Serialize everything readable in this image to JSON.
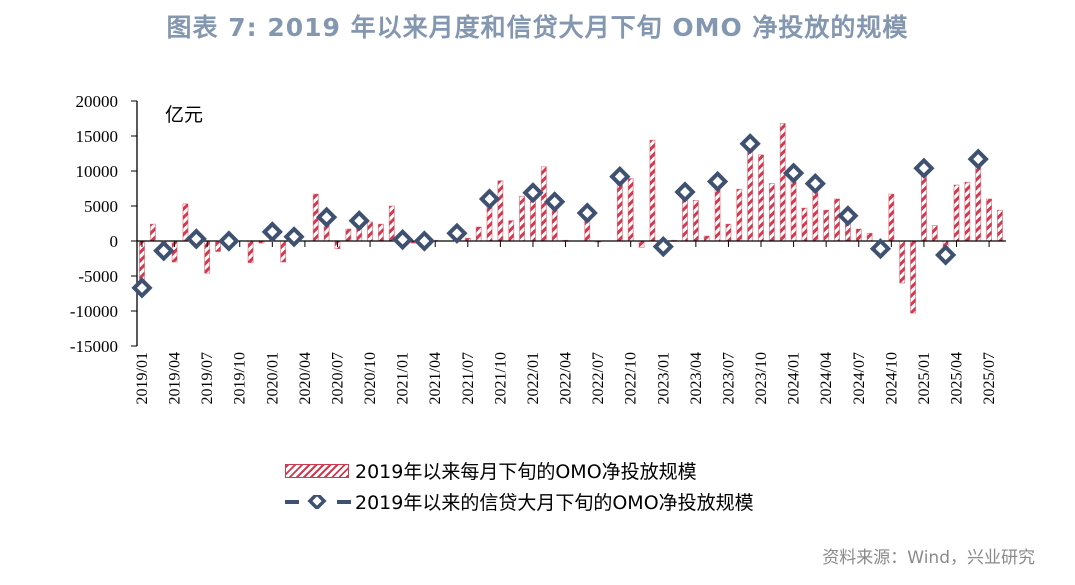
{
  "title": "图表 7:  2019 年以来月度和信贷大月下旬 OMO 净投放的规模",
  "source": "资料来源：Wind，兴业研究",
  "colors": {
    "bar": "#d0394f",
    "diamond": "#3f5170",
    "title": "#8497b0"
  },
  "chart_data": {
    "type": "bar",
    "unit_label": "亿元",
    "ylim": [
      -15000,
      20000
    ],
    "yticks": [
      20000,
      15000,
      10000,
      5000,
      0,
      -5000,
      -10000,
      -15000
    ],
    "grid": false,
    "legend_placement": "bottom",
    "x": [
      "2019/01",
      "2019/02",
      "2019/03",
      "2019/04",
      "2019/05",
      "2019/06",
      "2019/07",
      "2019/08",
      "2019/09",
      "2019/10",
      "2019/11",
      "2019/12",
      "2020/01",
      "2020/02",
      "2020/03",
      "2020/04",
      "2020/05",
      "2020/06",
      "2020/07",
      "2020/08",
      "2020/09",
      "2020/10",
      "2020/11",
      "2020/12",
      "2021/01",
      "2021/02",
      "2021/03",
      "2021/04",
      "2021/05",
      "2021/06",
      "2021/07",
      "2021/08",
      "2021/09",
      "2021/10",
      "2021/11",
      "2021/12",
      "2022/01",
      "2022/02",
      "2022/03",
      "2022/04",
      "2022/05",
      "2022/06",
      "2022/07",
      "2022/08",
      "2022/09",
      "2022/10",
      "2022/11",
      "2022/12",
      "2023/01",
      "2023/02",
      "2023/03",
      "2023/04",
      "2023/05",
      "2023/06",
      "2023/07",
      "2023/08",
      "2023/09",
      "2023/10",
      "2023/11",
      "2023/12",
      "2024/01",
      "2024/02",
      "2024/03",
      "2024/04",
      "2024/05",
      "2024/06",
      "2024/07",
      "2024/08",
      "2024/09",
      "2024/10",
      "2024/11",
      "2024/12",
      "2025/01",
      "2025/02",
      "2025/03",
      "2025/04",
      "2025/05",
      "2025/06",
      "2025/07",
      "2025/08"
    ],
    "xtick_labels": [
      "2019/01",
      "2019/04",
      "2019/07",
      "2019/10",
      "2020/01",
      "2020/04",
      "2020/07",
      "2020/10",
      "2021/01",
      "2021/04",
      "2021/07",
      "2021/10",
      "2022/01",
      "2022/04",
      "2022/07",
      "2022/10",
      "2023/01",
      "2023/04",
      "2023/07",
      "2023/10",
      "2024/01",
      "2024/04",
      "2024/07",
      "2024/10",
      "2025/01",
      "2025/04",
      "2025/07"
    ],
    "series": [
      {
        "name": "2019年以来每月下旬的OMO净投放规模",
        "type": "bar",
        "values": [
          -6700,
          2400,
          -1400,
          -3000,
          5300,
          300,
          -4600,
          -1500,
          0,
          0,
          -3100,
          -300,
          1300,
          -3000,
          600,
          0,
          6700,
          3400,
          -1100,
          1700,
          2900,
          2700,
          2400,
          5000,
          200,
          -300,
          0,
          100,
          0,
          1100,
          400,
          2000,
          6000,
          8600,
          2900,
          6400,
          6900,
          10600,
          5600,
          100,
          0,
          4000,
          -100,
          0,
          9200,
          8900,
          -900,
          14400,
          -800,
          100,
          7000,
          5800,
          700,
          8500,
          2400,
          7400,
          13900,
          12300,
          8200,
          16800,
          9700,
          4700,
          8200,
          4400,
          6000,
          3600,
          1700,
          1100,
          -1100,
          6700,
          -6000,
          -10300,
          10400,
          2200,
          -2000,
          8000,
          8400,
          11700,
          6000,
          4400
        ]
      },
      {
        "name": "2019年以来的信贷大月下旬的OMO净投放规模",
        "type": "scatter",
        "x": [
          "2019/01",
          "2019/03",
          "2019/06",
          "2019/09",
          "2020/01",
          "2020/03",
          "2020/06",
          "2020/09",
          "2021/01",
          "2021/03",
          "2021/06",
          "2021/09",
          "2022/01",
          "2022/03",
          "2022/06",
          "2022/09",
          "2023/01",
          "2023/03",
          "2023/06",
          "2023/09",
          "2024/01",
          "2024/03",
          "2024/06",
          "2024/09",
          "2025/01",
          "2025/03",
          "2025/06"
        ],
        "values": [
          -6700,
          -1400,
          300,
          0,
          1300,
          600,
          3400,
          2900,
          200,
          0,
          1100,
          6000,
          6900,
          5600,
          4000,
          9200,
          -800,
          7000,
          8500,
          13900,
          9700,
          8200,
          3600,
          -1100,
          10400,
          -2000,
          11700
        ]
      }
    ]
  }
}
